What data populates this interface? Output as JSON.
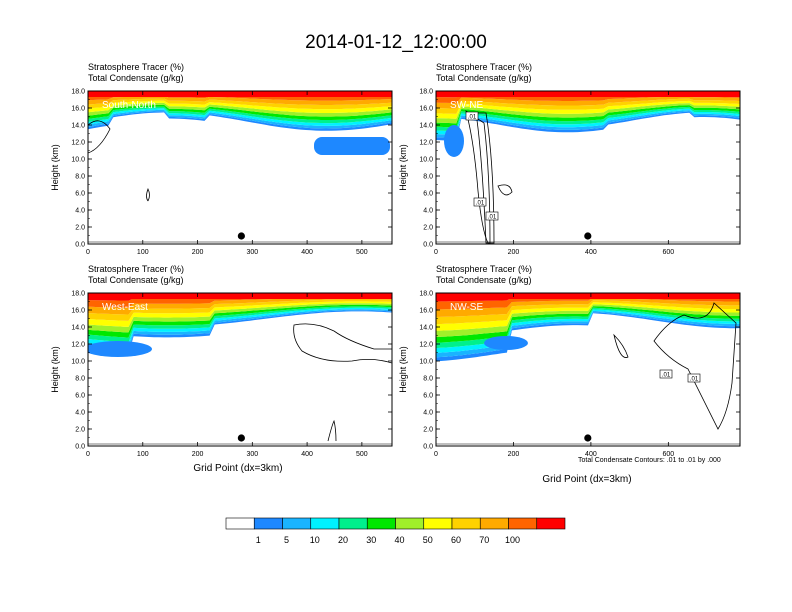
{
  "title": "2014-01-12_12:00:00",
  "panel_titles": [
    "Stratosphere Tracer   (%)",
    "Total Condensate   (g/kg)"
  ],
  "x_axis_label": "Grid Point (dx=3km)",
  "y_axis_label": "Height (km)",
  "contour_note": "Total Condensate Contours: .01 to .01 by .000",
  "colors": {
    "white": "#ffffff",
    "c1": "#1e88ff",
    "c2": "#1ab4ff",
    "c3": "#00f2ff",
    "c4": "#00f08c",
    "c5": "#00e800",
    "c6": "#a0f02a",
    "c7": "#ffff00",
    "c8": "#ffd200",
    "c9": "#ffaa00",
    "c10": "#ff6400",
    "c11": "#ff0000",
    "contour": "#000000"
  },
  "chart_data": [
    {
      "type": "heatmap",
      "name": "South-North",
      "title": [
        "Stratosphere Tracer   (%)",
        "Total Condensate   (g/kg)"
      ],
      "xlim": [
        0,
        555
      ],
      "ylim": [
        0,
        18
      ],
      "xticks": [
        0,
        100,
        200,
        300,
        400,
        500
      ],
      "yticks": [
        "0.0",
        "2.0",
        "4.0",
        "6.0",
        "8.0",
        "10.0",
        "12.0",
        "14.0",
        "16.0",
        "18.0"
      ],
      "ylabel": "Height (km)",
      "marker_x": 280,
      "contour_labels": []
    },
    {
      "type": "heatmap",
      "name": "SW-NE",
      "title": [
        "Stratosphere Tracer   (%)",
        "Total Condensate   (g/kg)"
      ],
      "xlim": [
        0,
        785
      ],
      "ylim": [
        0,
        18
      ],
      "xticks": [
        0,
        200,
        400,
        600
      ],
      "yticks": [
        "0.0",
        "2.0",
        "4.0",
        "6.0",
        "8.0",
        "10.0",
        "12.0",
        "14.0",
        "16.0",
        "18.0"
      ],
      "ylabel": "Height (km)",
      "marker_x": 392,
      "contour_labels": [
        ".01",
        ".01",
        ".01"
      ]
    },
    {
      "type": "heatmap",
      "name": "West-East",
      "title": [
        "Stratosphere Tracer   (%)",
        "Total Condensate   (g/kg)"
      ],
      "xlim": [
        0,
        555
      ],
      "ylim": [
        0,
        18
      ],
      "xticks": [
        0,
        100,
        200,
        300,
        400,
        500
      ],
      "yticks": [
        "0.0",
        "2.0",
        "4.0",
        "6.0",
        "8.0",
        "10.0",
        "12.0",
        "14.0",
        "16.0",
        "18.0"
      ],
      "ylabel": "Height (km)",
      "xlabel": "Grid Point (dx=3km)",
      "marker_x": 280,
      "contour_labels": []
    },
    {
      "type": "heatmap",
      "name": "NW-SE",
      "title": [
        "Stratosphere Tracer   (%)",
        "Total Condensate   (g/kg)"
      ],
      "xlim": [
        0,
        785
      ],
      "ylim": [
        0,
        18
      ],
      "xticks": [
        0,
        200,
        400,
        600
      ],
      "yticks": [
        "0.0",
        "2.0",
        "4.0",
        "6.0",
        "8.0",
        "10.0",
        "12.0",
        "14.0",
        "16.0",
        "18.0"
      ],
      "ylabel": "Height (km)",
      "xlabel": "Grid Point (dx=3km)",
      "marker_x": 392,
      "contour_labels": [
        ".01",
        ".01"
      ]
    }
  ],
  "colorbar": {
    "labels": [
      "1",
      "5",
      "10",
      "20",
      "30",
      "40",
      "50",
      "60",
      "70",
      "100"
    ],
    "colors": [
      "#ffffff",
      "#1e88ff",
      "#1ab4ff",
      "#00f2ff",
      "#00f08c",
      "#00e800",
      "#a0f02a",
      "#ffff00",
      "#ffd200",
      "#ffaa00",
      "#ff6400",
      "#ff0000"
    ]
  }
}
